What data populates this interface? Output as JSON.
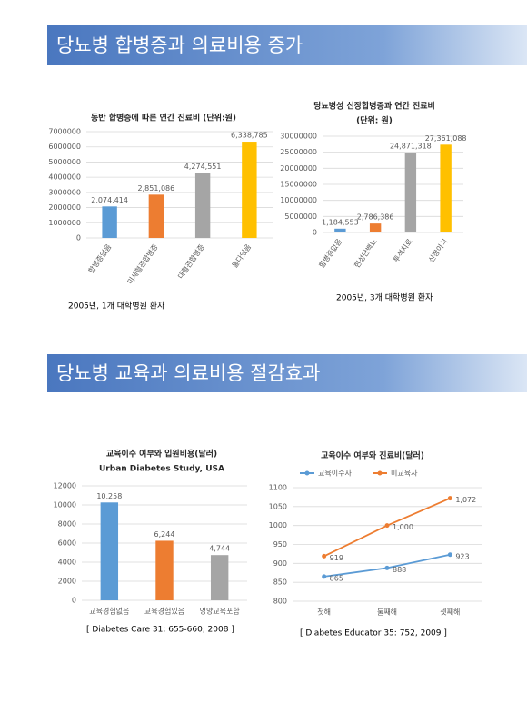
{
  "slides": [
    {
      "title": "당뇨병 합병증과 의료비용 증가"
    },
    {
      "title": "당뇨병 교육과 의료비용 절감효과"
    }
  ],
  "chart_data": [
    {
      "type": "bar",
      "title": "동반 합병증에 따른 연간 진료비 (단위:원)",
      "categories": [
        "합병증없음",
        "미세혈관합병증",
        "대혈관합병증",
        "둘다있음"
      ],
      "values": [
        2074414,
        2851086,
        4274551,
        6338785
      ],
      "value_labels": [
        "2,074,414",
        "2,851,086",
        "4,274,551",
        "6,338,785"
      ],
      "colors": [
        "#5b9bd5",
        "#ed7d31",
        "#a5a5a5",
        "#ffc000"
      ],
      "ylim": [
        0,
        7000000
      ],
      "yticks": [
        0,
        1000000,
        2000000,
        3000000,
        4000000,
        5000000,
        6000000,
        7000000
      ],
      "grid": true,
      "note": "2005년, 1개 대학병원 환자"
    },
    {
      "type": "bar",
      "title": "당뇨병성 신장합병증과 연간 진료비",
      "subtitle": "(단위: 원)",
      "categories": [
        "합병증없음",
        "현성단백뇨",
        "투석치료",
        "신장이식"
      ],
      "values": [
        1184553,
        2786386,
        24871318,
        27361088
      ],
      "value_labels": [
        "1,184,553",
        "2,786,386",
        "24,871,318",
        "27,361,088"
      ],
      "colors": [
        "#5b9bd5",
        "#ed7d31",
        "#a5a5a5",
        "#ffc000"
      ],
      "ylim": [
        0,
        30000000
      ],
      "yticks": [
        0,
        5000000,
        10000000,
        15000000,
        20000000,
        25000000,
        30000000
      ],
      "grid": true,
      "note": "2005년, 3개 대학병원 환자"
    },
    {
      "type": "bar",
      "title": "교육이수 여부와 입원비용(달러)",
      "subtitle": "Urban Diabetes Study, USA",
      "categories": [
        "교육경험없음",
        "교육경험있음",
        "영양교육포함"
      ],
      "values": [
        10258,
        6244,
        4744
      ],
      "value_labels": [
        "10,258",
        "6,244",
        "4,744"
      ],
      "colors": [
        "#5b9bd5",
        "#ed7d31",
        "#a5a5a5"
      ],
      "ylim": [
        0,
        12000
      ],
      "yticks": [
        0,
        2000,
        4000,
        6000,
        8000,
        10000,
        12000
      ],
      "grid": true,
      "note": "[ Diabetes Care 31: 655-660, 2008 ]"
    },
    {
      "type": "line",
      "title": "교육이수 여부와 진료비(달러)",
      "categories": [
        "첫해",
        "둘째해",
        "셋째해"
      ],
      "series": [
        {
          "name": "교육이수자",
          "color": "#5b9bd5",
          "values": [
            865,
            888,
            923
          ]
        },
        {
          "name": "미교육자",
          "color": "#ed7d31",
          "values": [
            919,
            1000,
            1072
          ],
          "value_labels": [
            "919",
            "1,000",
            "1,072"
          ]
        }
      ],
      "ylim": [
        800,
        1100
      ],
      "yticks": [
        800,
        850,
        900,
        950,
        1000,
        1050,
        1100
      ],
      "grid": true,
      "legend": "top",
      "note": "[ Diabetes Educator 35: 752, 2009 ]"
    }
  ]
}
